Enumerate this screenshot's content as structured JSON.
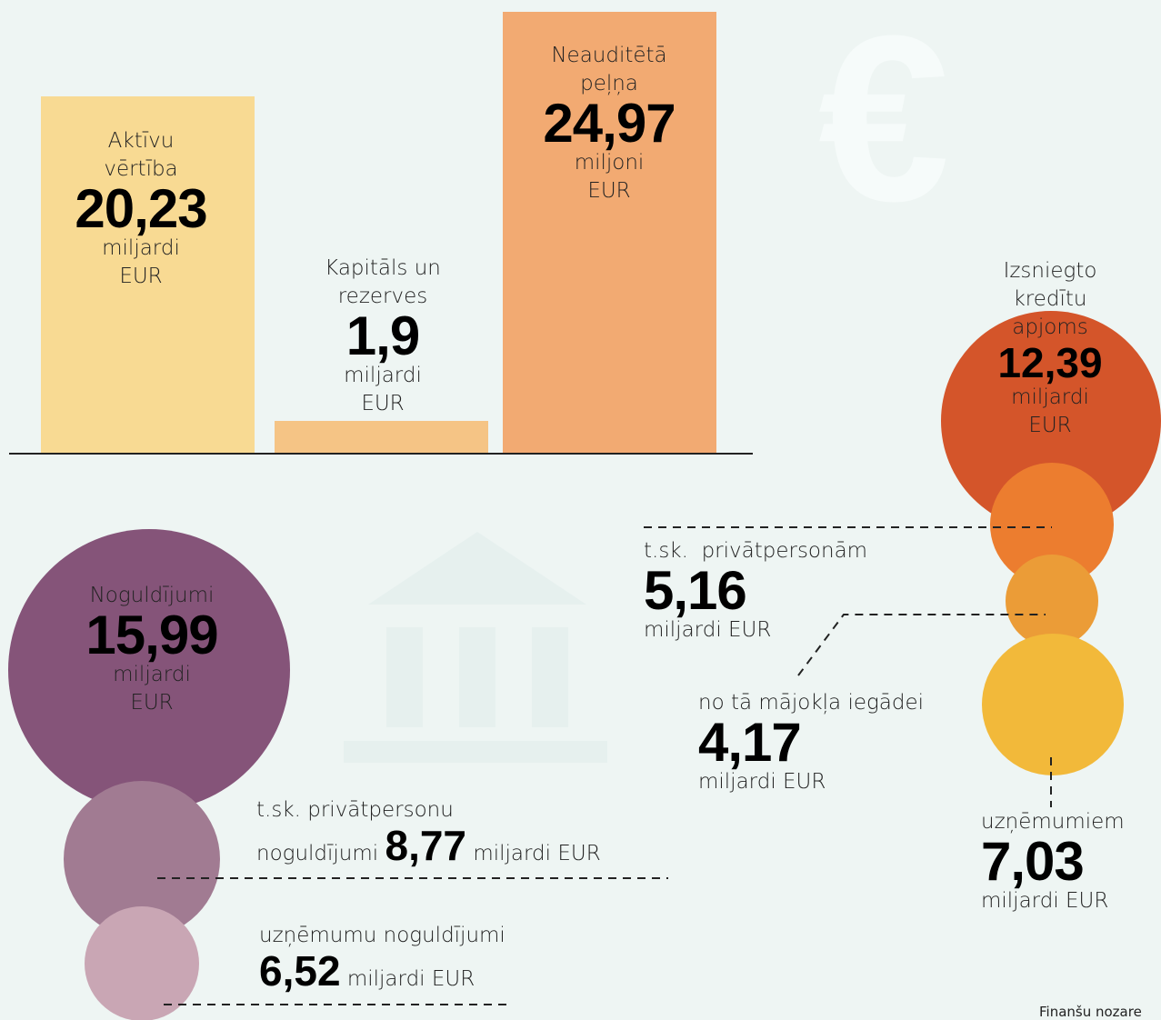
{
  "bars": [
    {
      "label": "Aktīvu vērtība",
      "value": "20,23",
      "unit": "miljardi EUR"
    },
    {
      "label": "Kapitāls un rezerves",
      "value": "1,9",
      "unit": "miljardi EUR"
    },
    {
      "label": "Neauditētā peļņa",
      "value": "24,97",
      "unit": "miljoni EUR"
    }
  ],
  "deposits": {
    "label": "Noguldījumi",
    "value": "15,99",
    "unit": "miljardi EUR",
    "private": {
      "label": "t.sk. privātpersonu",
      "label2": "noguldījumi",
      "value": "8,77",
      "unit": "miljardi EUR"
    },
    "business": {
      "label": "uzņēmumu noguldījumi",
      "value": "6,52",
      "unit": "miljardi EUR"
    }
  },
  "loans": {
    "label": "Izsniegto kredītu apjoms",
    "value": "12,39",
    "unit": "miljardi EUR",
    "private": {
      "label": "t.sk.  privātpersonām",
      "value": "5,16",
      "unit": "miljardi EUR"
    },
    "housing": {
      "label": "no tā mājokļa iegādei",
      "value": "4,17",
      "unit": "miljardi EUR"
    },
    "business": {
      "label": "uzņēmumiem",
      "value": "7,03",
      "unit": "miljardi EUR"
    }
  },
  "footer": "Finanšu nozare"
}
